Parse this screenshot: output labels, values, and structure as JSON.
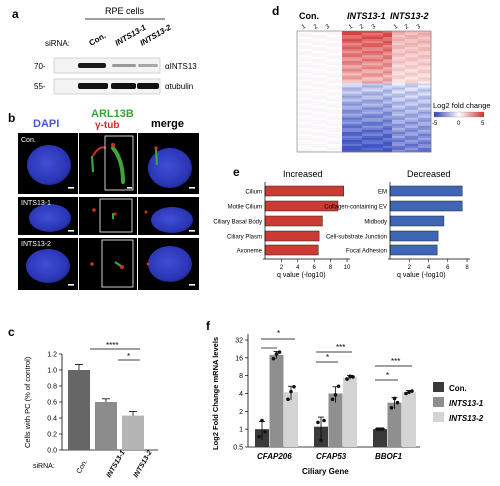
{
  "panel_a": {
    "letter": "a",
    "header": "RPE cells",
    "sirna_label": "siRNA:",
    "lanes": [
      "Con.",
      "INTS13-1",
      "INTS13-2"
    ],
    "markers": [
      "70-",
      "55-"
    ],
    "blot_labels": [
      "αINTS13",
      "αtubulin"
    ]
  },
  "panel_b": {
    "letter": "b",
    "col_dapi": "DAPI",
    "col_arl": "ARL13B",
    "col_gtub": "γ-tub",
    "col_merge": "merge",
    "rows": [
      "Con.",
      "INTS13-1",
      "INTS13-2"
    ]
  },
  "panel_c": {
    "letter": "c",
    "sig": [
      "****",
      "*"
    ],
    "ylabel": "Cells with PC (% of control)",
    "sirna_label": "siRNA:",
    "colors": {
      "con": "#666666",
      "ints1": "#8c8c8c",
      "ints2": "#b4b4b4"
    }
  },
  "panel_d": {
    "letter": "d",
    "col_groups": [
      "Con.",
      "INTS13-1",
      "INTS13-2"
    ],
    "col_numbers": [
      "1",
      "2",
      "3",
      "1",
      "2",
      "3",
      "1",
      "2",
      "3"
    ],
    "legend_title": "Log2 fold change",
    "legend_ticks": [
      "-5",
      "0",
      "5"
    ]
  },
  "panel_e": {
    "letter": "e",
    "left": {
      "title": "Increased",
      "terms": [
        "Cilium",
        "Motile Cilium",
        "Ciliary Basal Body",
        "Ciliary Plasm",
        "Axoneme"
      ],
      "xticks": [
        "2",
        "4",
        "6",
        "8",
        "10"
      ],
      "xlabel": "q value (-log10)",
      "color": "#cc3b33"
    },
    "right": {
      "title": "Decreased",
      "terms": [
        "EM",
        "Collagen-containing EV",
        "Midbody",
        "Cell-substrate Junction",
        "Focal Adhesion"
      ],
      "xticks": [
        "2",
        "4",
        "6",
        "8"
      ],
      "xlabel": "q value (-log10)",
      "color": "#3f66b5"
    }
  },
  "panel_f": {
    "letter": "f",
    "ylabel": "Log2 Fold Change mRNA levels",
    "yticks": [
      "32",
      "16",
      "8",
      "4",
      "2",
      "1",
      "0.5"
    ],
    "xlabel": "Ciliary Gene",
    "sig": [
      "*",
      "*",
      "***",
      "*",
      "***"
    ],
    "legend": [
      "Con.",
      "INTS13-1",
      "INTS13-2"
    ],
    "colors": {
      "con": "#3a3a3a",
      "ints1": "#8f8f8f",
      "ints2": "#d4d4d4"
    }
  },
  "chart_data": [
    {
      "type": "bar",
      "panel": "c",
      "categories": [
        "Con.",
        "INTS13-1",
        "INTS13-2"
      ],
      "values": [
        1.0,
        0.6,
        0.43
      ],
      "errors": [
        0.07,
        0.04,
        0.05
      ],
      "ylim": [
        0,
        1.2
      ],
      "yticks": [
        "0.0",
        "0.2",
        "0.4",
        "0.6",
        "0.8",
        "1.0",
        "1.2"
      ],
      "ylabel": "Cells with PC (% of control)"
    },
    {
      "type": "bar",
      "panel": "e-left",
      "categories": [
        "Cilium",
        "Motile Cilium",
        "Ciliary Basal Body",
        "Ciliary Plasm",
        "Axoneme"
      ],
      "values": [
        9.6,
        8.9,
        7.0,
        6.6,
        6.5
      ],
      "xlim": [
        0,
        10
      ],
      "xlabel": "q value (-log10)",
      "title": "Increased"
    },
    {
      "type": "bar",
      "panel": "e-right",
      "categories": [
        "EM",
        "Collagen-containing EV",
        "Midbody",
        "Cell-substrate Junction",
        "Focal Adhesion"
      ],
      "values": [
        7.5,
        7.5,
        5.6,
        5.0,
        4.9
      ],
      "xlim": [
        0,
        8
      ],
      "xlabel": "q value (-log10)",
      "title": "Decreased"
    },
    {
      "type": "bar",
      "panel": "f",
      "categories": [
        "CFAP206",
        "CFAP53",
        "BBOF1"
      ],
      "series": [
        {
          "name": "Con.",
          "values": [
            1.0,
            1.1,
            1.0
          ],
          "errors": [
            0.35,
            0.5,
            0.05
          ]
        },
        {
          "name": "INTS13-1",
          "values": [
            18.0,
            4.0,
            2.8
          ],
          "errors": [
            2.5,
            1.2,
            0.6
          ]
        },
        {
          "name": "INTS13-2",
          "values": [
            4.2,
            7.5,
            4.2
          ],
          "errors": [
            1.1,
            0.6,
            0.3
          ]
        }
      ],
      "points": [
        [
          [
            0.75,
            1.4,
            0.9
          ],
          [
            1.3,
            0.65,
            1.4
          ],
          [
            1.0,
            1.0,
            1.0
          ]
        ],
        [
          [
            15.5,
            18.5,
            20.0
          ],
          [
            3.2,
            3.8,
            5.3
          ],
          [
            2.3,
            3.3,
            2.8
          ]
        ],
        [
          [
            3.2,
            4.3,
            5.2
          ],
          [
            7.0,
            7.8,
            7.6
          ],
          [
            4.0,
            4.2,
            4.4
          ]
        ]
      ],
      "ylim": [
        0.5,
        32
      ],
      "yscale": "log2",
      "ylabel": "Log2 Fold Change mRNA levels",
      "xlabel": "Ciliary Gene"
    }
  ]
}
